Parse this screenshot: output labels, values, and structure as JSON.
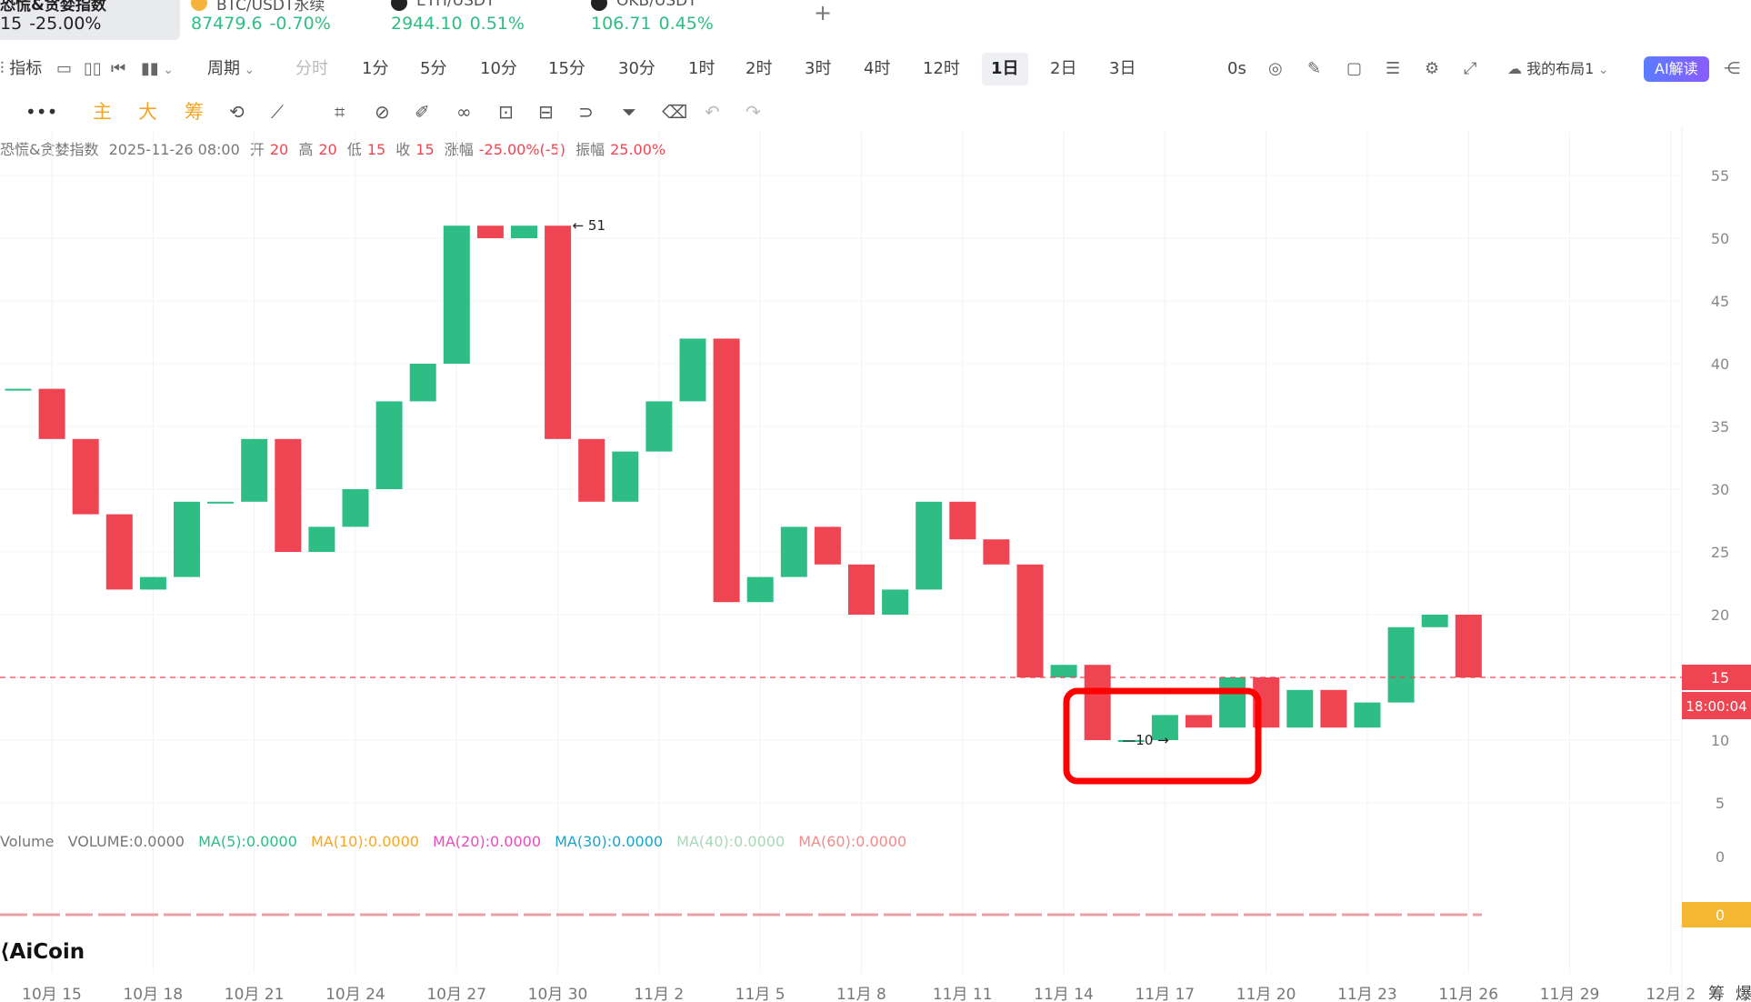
{
  "tickers": {
    "active": {
      "name": "恐慌&贪婪指数",
      "price": "15",
      "change": "-25.00%"
    },
    "items": [
      {
        "name": "BTC/USDT永续",
        "price": "87479.6",
        "change": "-0.70%"
      },
      {
        "name": "ETH/USDT",
        "price": "2944.10",
        "change": "0.51%"
      },
      {
        "name": "OKB/USDT",
        "price": "106.71",
        "change": "0.45%"
      }
    ],
    "add_label": "+"
  },
  "toolbar": {
    "indicator_label": "指标",
    "period_label": "周期",
    "timeframes": [
      "分时",
      "1分",
      "5分",
      "10分",
      "15分",
      "30分",
      "1时",
      "2时",
      "3时",
      "4时",
      "12时",
      "1日",
      "2日",
      "3日"
    ],
    "active_timeframe": "1日",
    "countdown": "0s",
    "layout_label": "我的布局1",
    "ai_label": "AI解读"
  },
  "drawing_toolbar": {
    "main_label": "主",
    "big_label": "大",
    "chip_label": "筹"
  },
  "ohlc": {
    "name": "恐慌&贪婪指数",
    "datetime": "2025-11-26 08:00",
    "open_label": "开",
    "open": "20",
    "high_label": "高",
    "high": "20",
    "low_label": "低",
    "low": "15",
    "close_label": "收",
    "close": "15",
    "change_label": "涨幅",
    "change": "-25.00%(-5)",
    "amplitude_label": "振幅",
    "amplitude": "25.00%"
  },
  "volume_row": {
    "label": "Volume",
    "volume": "VOLUME:0.0000",
    "ma5": "MA(5):0.0000",
    "ma10": "MA(10):0.0000",
    "ma20": "MA(20):0.0000",
    "ma30": "MA(30):0.0000",
    "ma40": "MA(40):0.0000",
    "ma60": "MA(60):0.0000"
  },
  "colors": {
    "up": "#2ebd85",
    "down": "#ef4451",
    "ma5": "#2ebd85",
    "ma10": "#f5a623",
    "ma20": "#e84dbd",
    "ma30": "#1aa3c8",
    "ma40": "#a8d8b8",
    "ma60": "#f08c8c",
    "highlight_box": "#ff0000",
    "volume_tag": "#f5b731"
  },
  "chart_data": {
    "type": "candlestick",
    "y_ticks": [
      55,
      50,
      45,
      40,
      35,
      30,
      25,
      20,
      15,
      10,
      5
    ],
    "ylim": [
      0,
      59
    ],
    "x_ticks": [
      "10月 15",
      "10月 18",
      "10月 21",
      "10月 24",
      "10月 27",
      "10月 30",
      "11月 2",
      "11月 5",
      "11月 8",
      "11月 11",
      "11月 14",
      "11月 17",
      "11月 20",
      "11月 23",
      "11月 26",
      "11月 29",
      "12月 2"
    ],
    "candles": [
      {
        "open": 38,
        "close": 38
      },
      {
        "open": 38,
        "close": 34
      },
      {
        "open": 34,
        "close": 28
      },
      {
        "open": 28,
        "close": 22
      },
      {
        "open": 22,
        "close": 23
      },
      {
        "open": 23,
        "close": 29
      },
      {
        "open": 29,
        "close": 29
      },
      {
        "open": 29,
        "close": 34
      },
      {
        "open": 34,
        "close": 25
      },
      {
        "open": 25,
        "close": 27
      },
      {
        "open": 27,
        "close": 30
      },
      {
        "open": 30,
        "close": 37
      },
      {
        "open": 37,
        "close": 40
      },
      {
        "open": 40,
        "close": 51
      },
      {
        "open": 51,
        "close": 50
      },
      {
        "open": 50,
        "close": 51
      },
      {
        "open": 51,
        "close": 34
      },
      {
        "open": 34,
        "close": 29
      },
      {
        "open": 29,
        "close": 33
      },
      {
        "open": 33,
        "close": 37
      },
      {
        "open": 37,
        "close": 42
      },
      {
        "open": 42,
        "close": 21
      },
      {
        "open": 21,
        "close": 23
      },
      {
        "open": 23,
        "close": 27
      },
      {
        "open": 27,
        "close": 24
      },
      {
        "open": 24,
        "close": 20
      },
      {
        "open": 20,
        "close": 22
      },
      {
        "open": 22,
        "close": 29
      },
      {
        "open": 29,
        "close": 26
      },
      {
        "open": 26,
        "close": 24
      },
      {
        "open": 24,
        "close": 15
      },
      {
        "open": 15,
        "close": 16
      },
      {
        "open": 16,
        "close": 10
      },
      {
        "open": 10,
        "close": 10
      },
      {
        "open": 10,
        "close": 12
      },
      {
        "open": 12,
        "close": 11
      },
      {
        "open": 11,
        "close": 15
      },
      {
        "open": 15,
        "close": 11
      },
      {
        "open": 11,
        "close": 14
      },
      {
        "open": 14,
        "close": 11
      },
      {
        "open": 11,
        "close": 13
      },
      {
        "open": 13,
        "close": 19
      },
      {
        "open": 19,
        "close": 20
      },
      {
        "open": 20,
        "close": 15
      }
    ],
    "max_label": "51",
    "min_label": "10",
    "last_price": "15",
    "countdown": "18:00:04",
    "volume_value": "0"
  },
  "logo": {
    "text": "AiCoin"
  },
  "side_labels": {
    "a": "筹",
    "b": "爆"
  }
}
